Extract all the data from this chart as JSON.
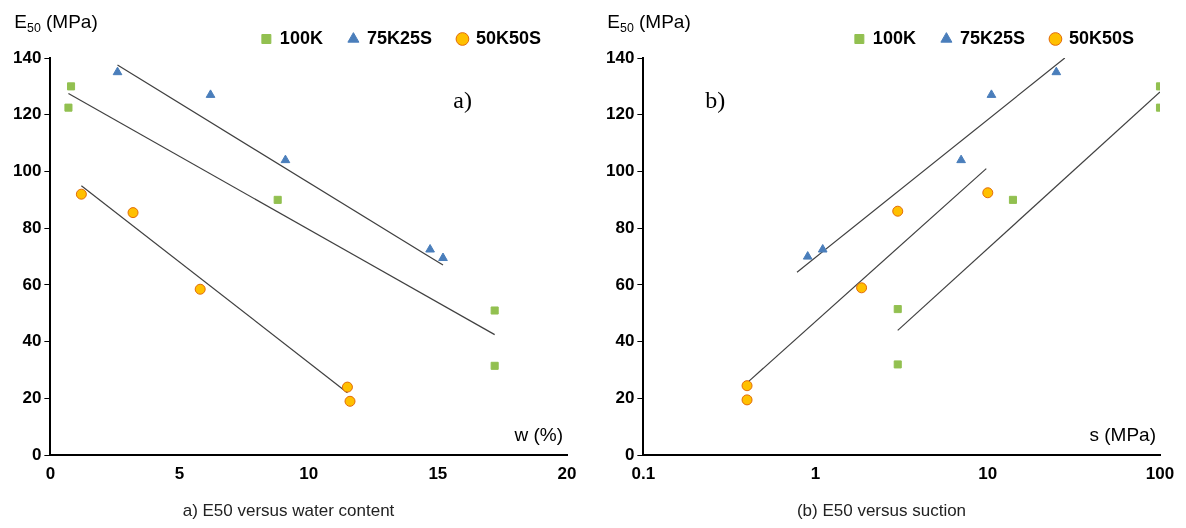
{
  "chart_data": [
    {
      "type": "scatter",
      "title": "a) E50 versus water content",
      "xlabel": "w (%)",
      "ylabel": "E$_{50}$ (MPa)",
      "annotations": [
        "a)"
      ],
      "xlim": [
        0,
        20
      ],
      "xticks": [
        0,
        5,
        10,
        15,
        20
      ],
      "ylim": [
        0,
        140
      ],
      "yticks": [
        0,
        20,
        40,
        60,
        80,
        100,
        120,
        140
      ],
      "grid": false,
      "legend": "top",
      "series": [
        {
          "name": "100K",
          "color": "#92c050",
          "marker": "square",
          "x": [
            0.7,
            0.8,
            8.8,
            17.2,
            17.2
          ],
          "values": [
            122.5,
            130,
            90,
            51,
            31.5
          ]
        },
        {
          "name": "75K25S",
          "color": "#4a7ebb",
          "marker": "triangle",
          "x": [
            2.6,
            6.2,
            9.1,
            14.7,
            15.2
          ],
          "values": [
            135,
            127,
            104,
            72.5,
            69.5
          ]
        },
        {
          "name": "50K50S",
          "color": "#ffc000",
          "marker": "circle",
          "x": [
            1.2,
            3.2,
            5.8,
            11.5,
            11.6
          ],
          "values": [
            92,
            85.5,
            58.5,
            24,
            19
          ]
        },
        {
          "type": "line",
          "color": "#404040",
          "marker": "none",
          "x": [
            0.7,
            17.2
          ],
          "values": [
            127.5,
            42.5
          ]
        },
        {
          "type": "line",
          "color": "#404040",
          "marker": "none",
          "x": [
            2.6,
            15.2
          ],
          "values": [
            137.5,
            67
          ]
        },
        {
          "type": "line",
          "color": "#404040",
          "marker": "none",
          "x": [
            1.2,
            11.5
          ],
          "values": [
            95,
            22
          ]
        }
      ]
    },
    {
      "type": "scatter",
      "title": "(b) E50 versus suction",
      "xlabel": "s (MPa)",
      "ylabel": "E$_{50}$ (MPa)",
      "annotations": [
        "b)"
      ],
      "log": "x",
      "xlim": [
        0.1,
        100
      ],
      "xticks": [
        0.1,
        1,
        10,
        100
      ],
      "ylim": [
        0,
        140
      ],
      "yticks": [
        0,
        20,
        40,
        60,
        80,
        100,
        120,
        140
      ],
      "grid": false,
      "legend": "top",
      "series": [
        {
          "name": "100K",
          "color": "#92c050",
          "marker": "square",
          "x": [
            3,
            3,
            14,
            100,
            100
          ],
          "values": [
            51.5,
            32,
            90,
            130,
            122.5
          ]
        },
        {
          "name": "75K25S",
          "color": "#4a7ebb",
          "marker": "triangle",
          "x": [
            0.9,
            1.1,
            7,
            10.5,
            25
          ],
          "values": [
            70,
            72.5,
            104,
            127,
            135
          ]
        },
        {
          "name": "50K50S",
          "color": "#ffc000",
          "marker": "circle",
          "x": [
            0.4,
            0.4,
            1.85,
            3,
            10
          ],
          "values": [
            24.5,
            19.5,
            59,
            86,
            92.5
          ]
        },
        {
          "type": "line",
          "color": "#404040",
          "marker": "none",
          "x": [
            0.78,
            28
          ],
          "values": [
            64.5,
            140
          ]
        },
        {
          "type": "line",
          "color": "#404040",
          "marker": "none",
          "x": [
            0.4,
            9.8
          ],
          "values": [
            25.5,
            101
          ]
        },
        {
          "type": "line",
          "color": "#404040",
          "marker": "none",
          "x": [
            3,
            100
          ],
          "values": [
            44,
            128
          ]
        }
      ]
    }
  ]
}
